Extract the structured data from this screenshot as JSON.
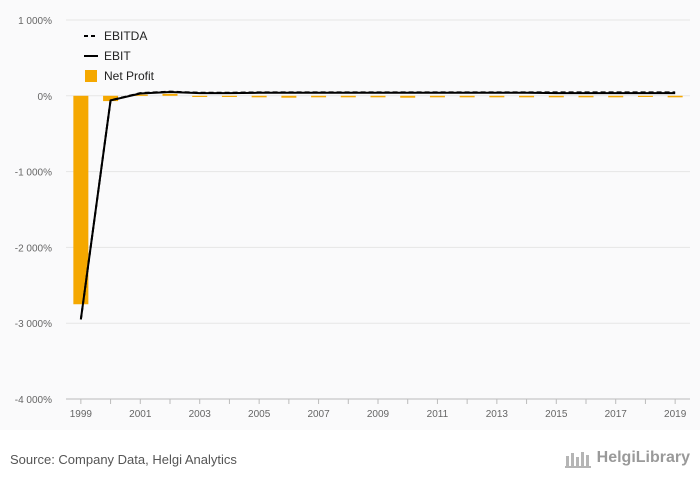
{
  "chart_data": {
    "type": "bar",
    "x": [
      1999,
      2000,
      2001,
      2002,
      2003,
      2004,
      2005,
      2006,
      2007,
      2008,
      2009,
      2010,
      2011,
      2012,
      2013,
      2014,
      2015,
      2016,
      2017,
      2018,
      2019
    ],
    "series": [
      {
        "name": "Net Profit",
        "type": "bar",
        "values": [
          -2750,
          -70,
          15,
          25,
          -15,
          -15,
          -20,
          -25,
          -20,
          -20,
          -20,
          -25,
          -20,
          -20,
          -20,
          -20,
          -20,
          -20,
          -20,
          -15,
          -20
        ]
      },
      {
        "name": "EBITDA",
        "type": "line",
        "style": "dashed",
        "values": [
          -2950,
          -60,
          35,
          55,
          40,
          40,
          45,
          45,
          45,
          45,
          45,
          45,
          45,
          45,
          45,
          45,
          45,
          45,
          45,
          45,
          45
        ]
      },
      {
        "name": "EBIT",
        "type": "line",
        "style": "solid",
        "values": [
          -2950,
          -60,
          30,
          50,
          35,
          35,
          40,
          40,
          40,
          40,
          40,
          40,
          40,
          40,
          40,
          40,
          35,
          35,
          35,
          35,
          35
        ]
      }
    ],
    "y_ticks": [
      1000,
      0,
      -1000,
      -2000,
      -3000,
      -4000
    ],
    "y_tick_labels": [
      "1 000%",
      "0%",
      "-1 000%",
      "-2 000%",
      "-3 000%",
      "-4 000%"
    ],
    "x_tick_labels": [
      "1999",
      "2001",
      "2003",
      "2005",
      "2007",
      "2009",
      "2011",
      "2013",
      "2015",
      "2017",
      "2019"
    ],
    "ylim": [
      -4000,
      1000
    ],
    "unit": "%",
    "legend_position": "top-left",
    "grid": true,
    "colors": {
      "bar": "#f5a800",
      "lines": "#000000",
      "grid": "#e6e6e6"
    }
  },
  "legend": [
    {
      "label": "EBITDA",
      "style": "dashed"
    },
    {
      "label": "EBIT",
      "style": "solid"
    },
    {
      "label": "Net Profit",
      "style": "bar"
    }
  ],
  "footer": {
    "source": "Source: Company Data, Helgi Analytics",
    "brand": "HelgiLibrary"
  }
}
